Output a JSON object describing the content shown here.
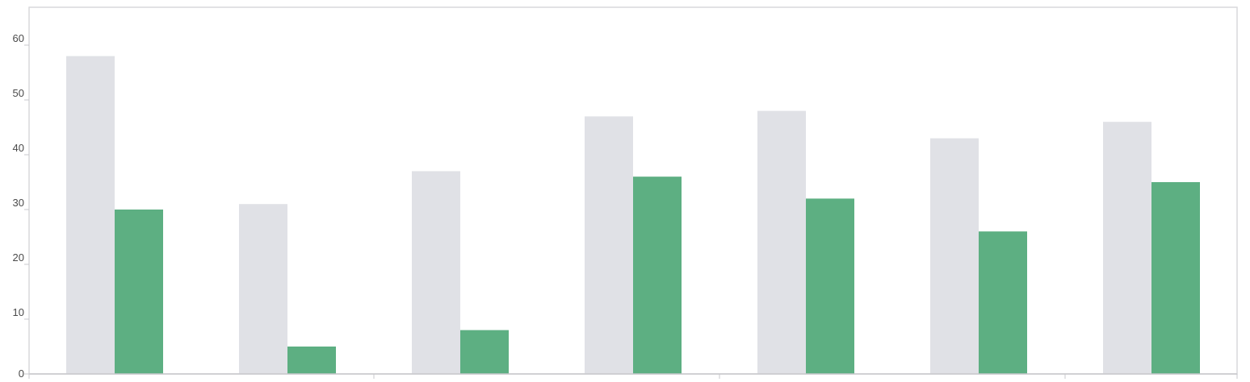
{
  "chart_data": {
    "type": "bar",
    "categories": [
      "",
      "",
      "",
      "",
      "",
      "",
      ""
    ],
    "series": [
      {
        "values": [
          58,
          31,
          37,
          47,
          48,
          43,
          46
        ],
        "color": "#e0e1e6"
      },
      {
        "values": [
          30,
          5,
          8,
          36,
          32,
          26,
          35
        ],
        "color": "#5daf82"
      }
    ],
    "ylim": [
      0,
      66
    ],
    "yticks": [
      0,
      10,
      20,
      30,
      40,
      50,
      60
    ],
    "ytick_labels": [
      "0",
      "10",
      "20",
      "30",
      "40",
      "50",
      "60"
    ],
    "title": "",
    "xlabel": "",
    "ylabel": "",
    "grid": false,
    "legend": "none"
  },
  "colors": {
    "plot_border": "#d9d9dc",
    "axis_line": "#c8c8cc",
    "tick_text": "#4a4a4a"
  }
}
